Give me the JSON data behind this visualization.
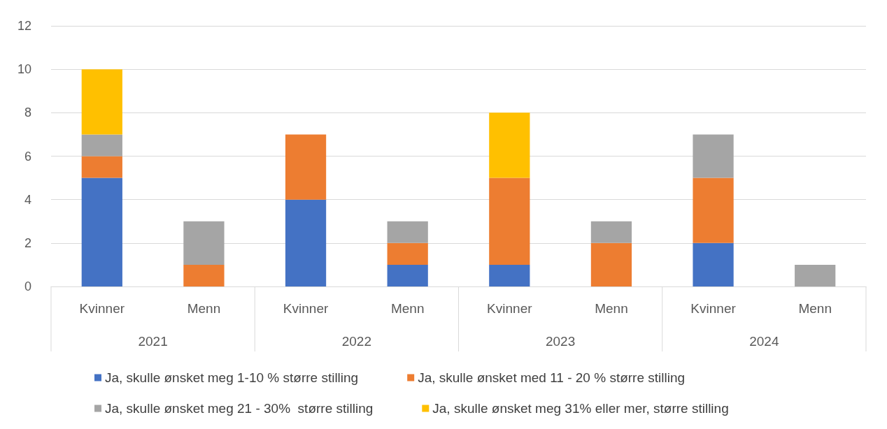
{
  "chart_data": {
    "type": "bar",
    "stacked": true,
    "categories": [
      "Kvinner",
      "Menn",
      "Kvinner",
      "Menn",
      "Kvinner",
      "Menn",
      "Kvinner",
      "Menn"
    ],
    "annotations": [
      "2021",
      "2022",
      "2023",
      "2024"
    ],
    "series": [
      {
        "name": "Ja, skulle ønsket meg 1-10 % større stilling",
        "color": "#4472c4",
        "values": [
          5,
          0,
          4,
          1,
          1,
          0,
          2,
          0
        ]
      },
      {
        "name": "Ja, skulle ønsket med 11 - 20 % større stilling",
        "color": "#ed7d31",
        "values": [
          1,
          1,
          3,
          1,
          4,
          2,
          3,
          0
        ]
      },
      {
        "name": "Ja, skulle ønsket meg 21 - 30%  større stilling",
        "color": "#a5a5a5",
        "values": [
          1,
          2,
          0,
          1,
          0,
          1,
          2,
          1
        ]
      },
      {
        "name": "Ja, skulle ønsket meg 31% eller mer, større stilling",
        "color": "#ffc000",
        "values": [
          3,
          0,
          0,
          0,
          3,
          0,
          0,
          0
        ]
      }
    ],
    "ylim": [
      0,
      12
    ],
    "yticks": [
      0,
      2,
      4,
      6,
      8,
      10,
      12
    ],
    "grid": "y",
    "legend": "bottom"
  }
}
